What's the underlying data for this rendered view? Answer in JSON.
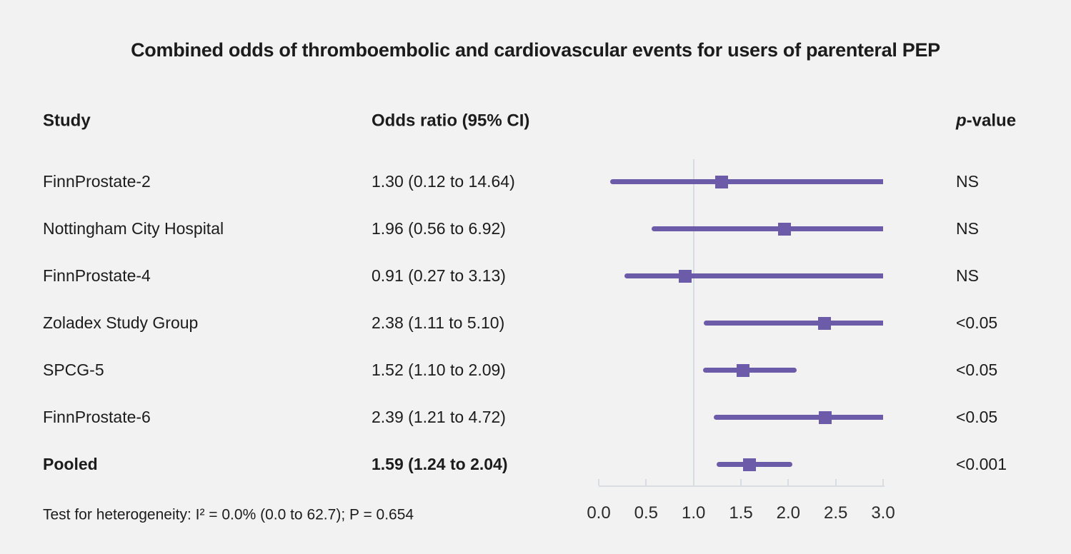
{
  "title": "Combined odds of thromboembolic and cardiovascular events for users of parenteral PEP",
  "columns": {
    "study": "Study",
    "odds_ratio": "Odds ratio (95% CI)",
    "p_italic": "p",
    "p_rest": "-value"
  },
  "footer": "Test for heterogeneity: I² = 0.0% (0.0 to 62.7); P = 0.654",
  "colors": {
    "marker": "#6c5ba8",
    "ci_line": "#6c5ba8",
    "reference_line": "#d7dce2",
    "axis": "#d9dce0",
    "background": "#f2f2f2",
    "text": "#1c1c1c"
  },
  "chart_data": {
    "type": "forest",
    "title": "Combined odds of thromboembolic and cardiovascular events for users of parenteral PEP",
    "xlabel": "",
    "xlim": [
      0.0,
      3.0
    ],
    "reference_value": 1.0,
    "axis_tick_values": [
      0.0,
      0.5,
      1.0,
      1.5,
      2.0,
      2.5,
      3.0
    ],
    "axis_tick_labels": [
      "0.0",
      "0.5",
      "1.0",
      "1.5",
      "2.0",
      "2.5",
      "3.0"
    ],
    "grid": false,
    "studies": [
      {
        "study": "FinnProstate-2",
        "or": 1.3,
        "lo": 0.12,
        "hi": 14.64,
        "or_ci_label": "1.30 (0.12 to 14.64)",
        "p": "NS",
        "bold": false
      },
      {
        "study": "Nottingham City Hospital",
        "or": 1.96,
        "lo": 0.56,
        "hi": 6.92,
        "or_ci_label": "1.96 (0.56 to 6.92)",
        "p": "NS",
        "bold": false
      },
      {
        "study": "FinnProstate-4",
        "or": 0.91,
        "lo": 0.27,
        "hi": 3.13,
        "or_ci_label": "0.91 (0.27 to 3.13)",
        "p": "NS",
        "bold": false
      },
      {
        "study": "Zoladex Study Group",
        "or": 2.38,
        "lo": 1.11,
        "hi": 5.1,
        "or_ci_label": "2.38 (1.11 to 5.10)",
        "p": "<0.05",
        "bold": false
      },
      {
        "study": "SPCG-5",
        "or": 1.52,
        "lo": 1.1,
        "hi": 2.09,
        "or_ci_label": "1.52 (1.10 to 2.09)",
        "p": "<0.05",
        "bold": false
      },
      {
        "study": "FinnProstate-6",
        "or": 2.39,
        "lo": 1.21,
        "hi": 4.72,
        "or_ci_label": "2.39 (1.21 to 4.72)",
        "p": "<0.05",
        "bold": false
      },
      {
        "study": "Pooled",
        "or": 1.59,
        "lo": 1.24,
        "hi": 2.04,
        "or_ci_label": "1.59 (1.24 to 2.04)",
        "p": "<0.001",
        "bold": true
      }
    ]
  }
}
